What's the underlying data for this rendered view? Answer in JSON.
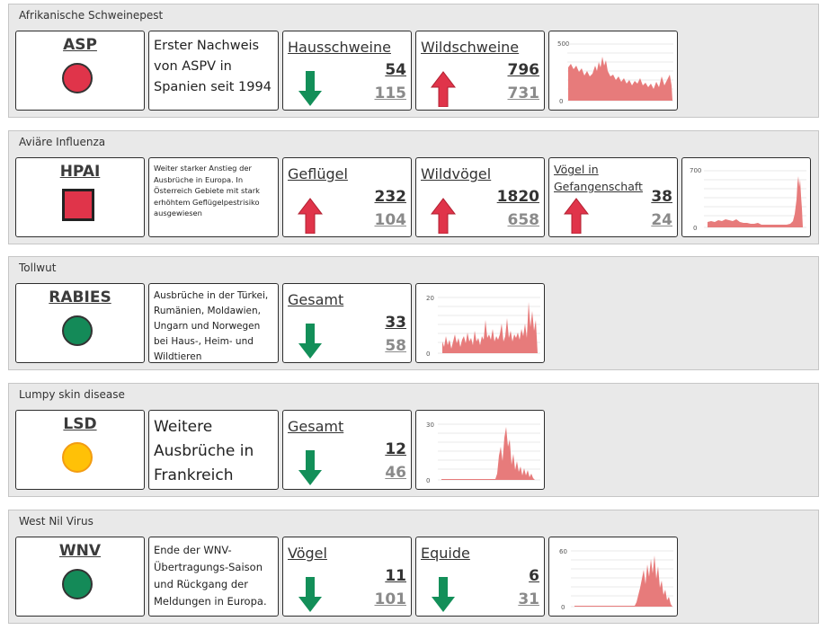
{
  "colors": {
    "red": "#e0344a",
    "green": "#148a58",
    "yellow": "#ffc107",
    "up_arrow": "#e0344a",
    "down_arrow": "#138f59",
    "bars": "#e77b7b"
  },
  "sections": [
    {
      "title": "Afrikanische Schweinepest",
      "code": "ASP",
      "status": {
        "shape": "circle",
        "color": "red"
      },
      "description": "Erster Nachweis von ASPV in Spanien seit 1994",
      "metrics": [
        {
          "label": "Hausschweine",
          "current": "54",
          "previous": "115",
          "trend": "down"
        },
        {
          "label": "Wildschweine",
          "current": "796",
          "previous": "731",
          "trend": "up"
        }
      ],
      "chart": {
        "y_max_label": "500",
        "y_min_label": "0"
      }
    },
    {
      "title": "Aviäre Influenza",
      "code": "HPAI",
      "status": {
        "shape": "square",
        "color": "red"
      },
      "description": "Weiter starker Anstieg der Ausbrüche in Europa. In Österreich Gebiete mit stark erhöhtem Geflügelpestrisiko ausgewiesen",
      "metrics": [
        {
          "label": "Geflügel",
          "current": "232",
          "previous": "104",
          "trend": "up"
        },
        {
          "label": "Wildvögel",
          "current": "1820",
          "previous": "658",
          "trend": "up"
        },
        {
          "label": "Vögel in Gefangenschaft",
          "current": "38",
          "previous": "24",
          "trend": "up"
        }
      ],
      "chart": {
        "y_max_label": "700",
        "y_min_label": "0"
      }
    },
    {
      "title": "Tollwut",
      "code": "RABIES",
      "status": {
        "shape": "circle",
        "color": "green"
      },
      "description": "Ausbrüche in der Türkei, Rumänien, Moldawien, Ungarn und Norwegen bei Haus-, Heim- und Wildtieren",
      "metrics": [
        {
          "label": "Gesamt",
          "current": "33",
          "previous": "58",
          "trend": "down"
        }
      ],
      "chart": {
        "y_max_label": "20",
        "y_min_label": "0"
      }
    },
    {
      "title": "Lumpy skin disease",
      "code": "LSD",
      "status": {
        "shape": "circle",
        "color": "yellow"
      },
      "description": "Weitere Ausbrüche in Frankreich",
      "metrics": [
        {
          "label": "Gesamt",
          "current": "12",
          "previous": "46",
          "trend": "down"
        }
      ],
      "chart": {
        "y_max_label": "30",
        "y_min_label": "0"
      }
    },
    {
      "title": "West Nil Virus",
      "code": "WNV",
      "status": {
        "shape": "circle",
        "color": "green"
      },
      "description": "Ende der WNV-Übertragungs-Saison und Rückgang der Meldungen in Europa.",
      "metrics": [
        {
          "label": "Vögel",
          "current": "11",
          "previous": "101",
          "trend": "down"
        },
        {
          "label": "Equide",
          "current": "6",
          "previous": "31",
          "trend": "down"
        }
      ],
      "chart": {
        "y_max_label": "60",
        "y_min_label": "0"
      }
    }
  ]
}
